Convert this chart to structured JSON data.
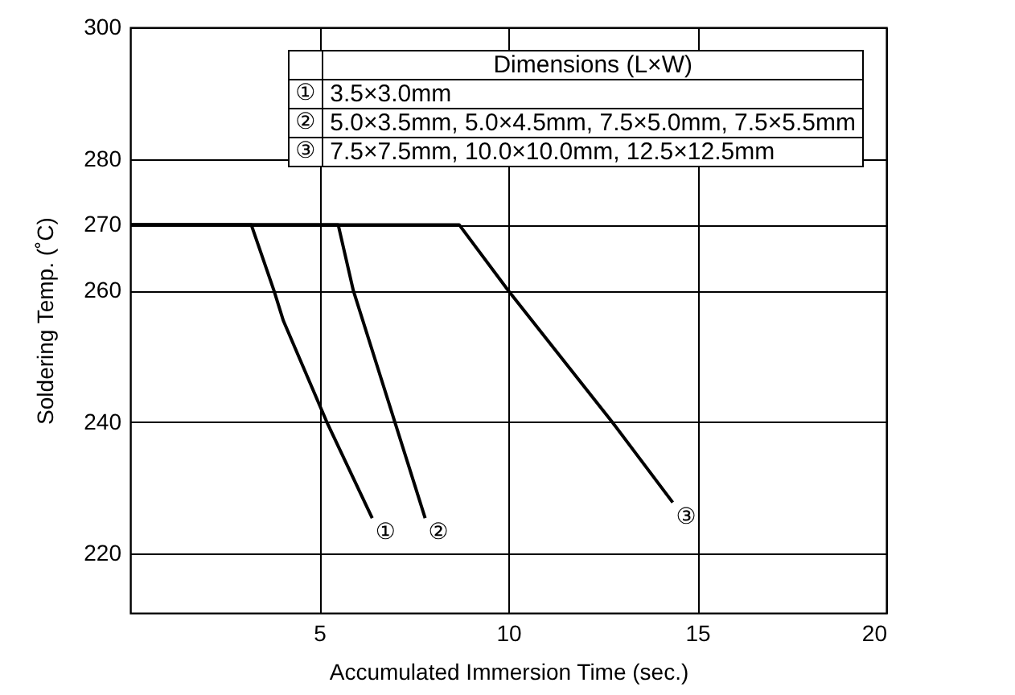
{
  "chart_data": {
    "type": "line",
    "xlabel": "Accumulated Immersion Time (sec.)",
    "ylabel": "Soldering Temp. (˚C)",
    "legend_title": "Dimensions (L×W)",
    "series": [
      {
        "name": "① 3.5×3.0mm",
        "color": "#000000",
        "x": [
          0,
          3.2,
          3.8,
          4.05,
          5.2,
          6.4
        ],
        "values": [
          270,
          270,
          260,
          255.4,
          240,
          225.4
        ]
      },
      {
        "name": "② 5.0×3.5mm, 5.0×4.5mm, 7.5×5.0mm, 7.5×5.5mm",
        "color": "#000000",
        "x": [
          0,
          5.5,
          5.9,
          7.0,
          7.8
        ],
        "values": [
          270,
          270,
          260,
          240,
          225.4
        ]
      },
      {
        "name": "③ 7.5×7.5mm, 10.0×10.0mm, 12.5×12.5mm",
        "color": "#000000",
        "x": [
          0,
          8.7,
          10.0,
          12.75,
          14.35
        ],
        "values": [
          270,
          270,
          260,
          240,
          227.8
        ]
      }
    ],
    "annotations": [
      {
        "text": "①",
        "x": 6.4,
        "y": 225.4
      },
      {
        "text": "②",
        "x": 7.8,
        "y": 225.4
      },
      {
        "text": "③",
        "x": 14.35,
        "y": 227.8
      }
    ],
    "xlim": [
      0,
      20
    ],
    "xticks": [
      5,
      10,
      15,
      20
    ],
    "ylim": [
      211,
      300
    ],
    "yticks": [
      220,
      240,
      260,
      270,
      280,
      300
    ],
    "grid": true,
    "legend": "top right",
    "line_style": "solid",
    "marker": "none"
  }
}
